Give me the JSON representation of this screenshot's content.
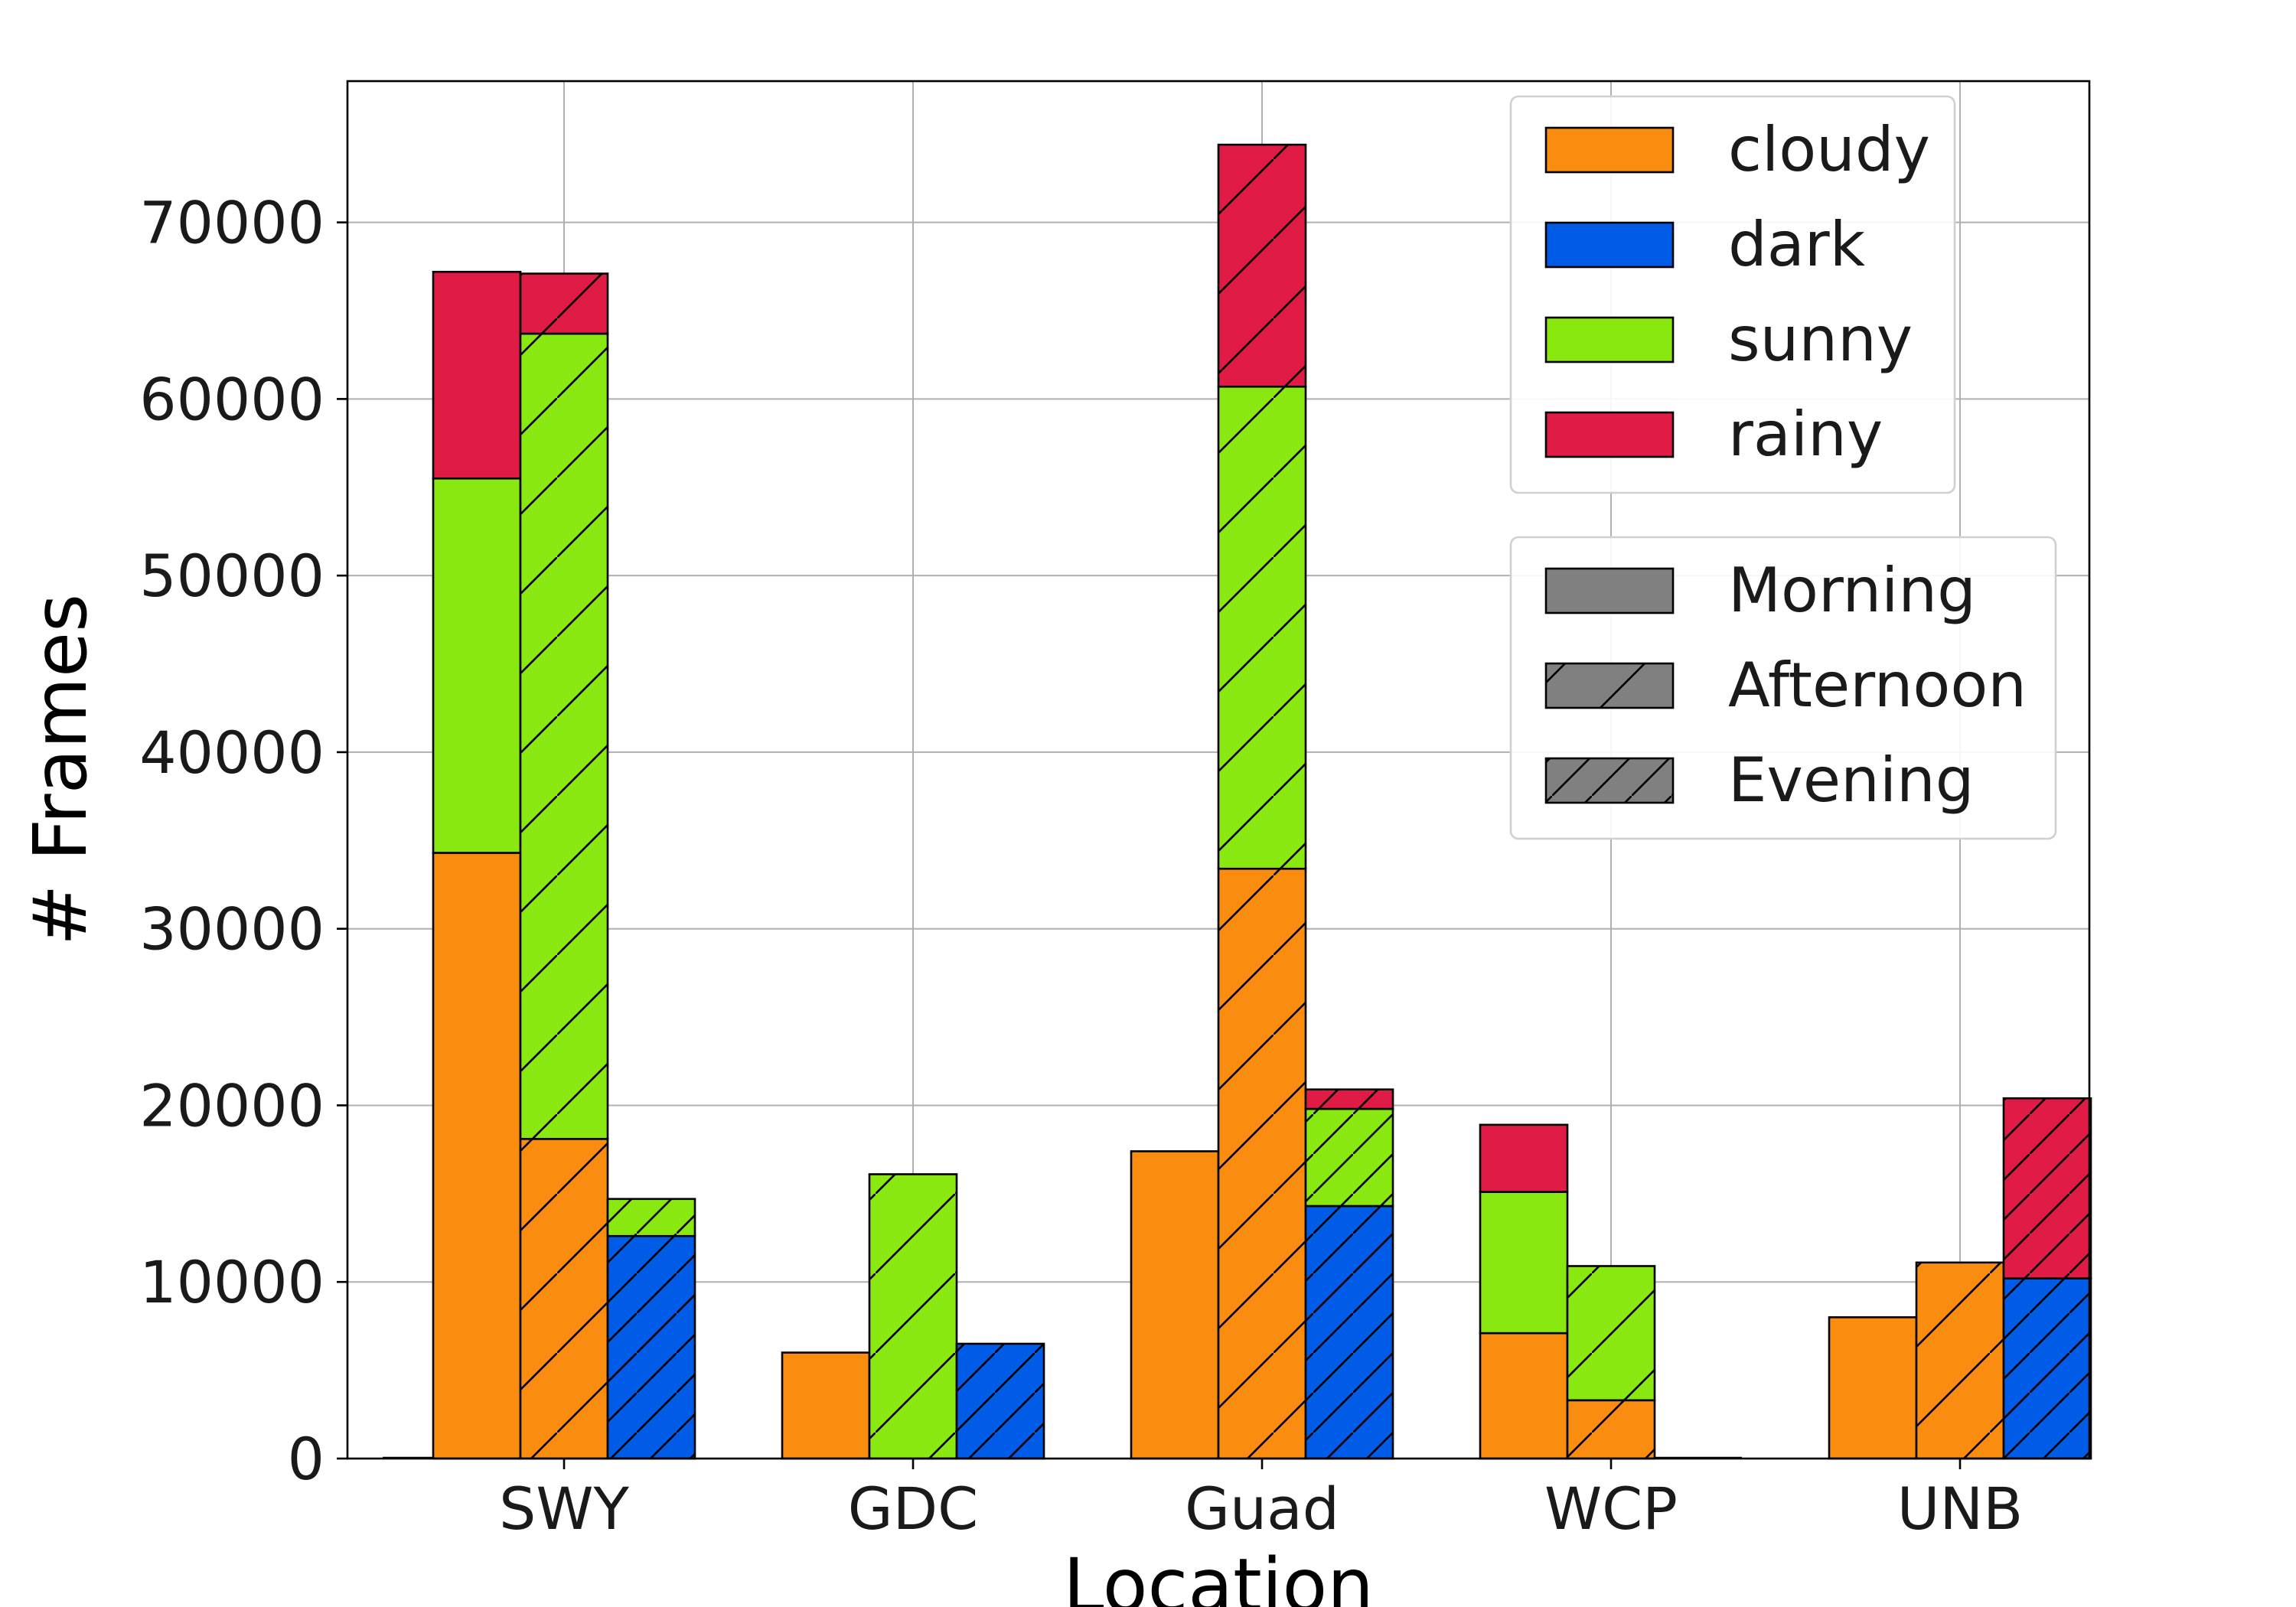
{
  "chart_data": {
    "type": "bar",
    "layout": "grouped-stacked",
    "title": "",
    "xlabel": "Location",
    "ylabel": "# Frames",
    "ylim": [
      0,
      78000
    ],
    "yticks": [
      0,
      10000,
      20000,
      30000,
      40000,
      50000,
      60000,
      70000
    ],
    "ytick_labels": [
      "0",
      "10000",
      "20000",
      "30000",
      "40000",
      "50000",
      "60000",
      "70000"
    ],
    "grid": true,
    "categories": [
      "SWY",
      "GDC",
      "Guad",
      "WCP",
      "UNB"
    ],
    "times": [
      "Morning",
      "Afternoon",
      "Evening"
    ],
    "conditions": [
      "cloudy",
      "dark",
      "sunny",
      "rainy"
    ],
    "colors": {
      "cloudy": "#fa8c10",
      "dark": "#005ce6",
      "sunny": "#88e80f",
      "rainy": "#e01b45",
      "legend_patch": "#808080",
      "edge": "#000000",
      "grid": "#b0b0b0"
    },
    "hatches": {
      "Morning": "none",
      "Afternoon": "sparse-diagonal",
      "Evening": "dense-diagonal"
    },
    "data": {
      "SWY": {
        "Morning": {
          "cloudy": 34300,
          "dark": 0,
          "sunny": 21200,
          "rainy": 11700
        },
        "Afternoon": {
          "cloudy": 18100,
          "dark": 0,
          "sunny": 45600,
          "rainy": 3400
        },
        "Evening": {
          "cloudy": 0,
          "dark": 12600,
          "sunny": 2100,
          "rainy": 0
        }
      },
      "GDC": {
        "Morning": {
          "cloudy": 6000,
          "dark": 0,
          "sunny": 0,
          "rainy": 0
        },
        "Afternoon": {
          "cloudy": 0,
          "dark": 0,
          "sunny": 16100,
          "rainy": 0
        },
        "Evening": {
          "cloudy": 0,
          "dark": 6500,
          "sunny": 0,
          "rainy": 0
        }
      },
      "Guad": {
        "Morning": {
          "cloudy": 17400,
          "dark": 0,
          "sunny": 0,
          "rainy": 0
        },
        "Afternoon": {
          "cloudy": 33400,
          "dark": 0,
          "sunny": 27300,
          "rainy": 13700
        },
        "Evening": {
          "cloudy": 0,
          "dark": 14300,
          "sunny": 5500,
          "rainy": 1100
        }
      },
      "WCP": {
        "Morning": {
          "cloudy": 7100,
          "dark": 0,
          "sunny": 8000,
          "rainy": 3800
        },
        "Afternoon": {
          "cloudy": 3300,
          "dark": 0,
          "sunny": 7600,
          "rainy": 0
        },
        "Evening": {
          "cloudy": 0,
          "dark": 0,
          "sunny": 0,
          "rainy": 0
        }
      },
      "UNB": {
        "Morning": {
          "cloudy": 8000,
          "dark": 0,
          "sunny": 0,
          "rainy": 0
        },
        "Afternoon": {
          "cloudy": 11100,
          "dark": 0,
          "sunny": 0,
          "rainy": 0
        },
        "Evening": {
          "cloudy": 0,
          "dark": 10200,
          "sunny": 0,
          "rainy": 10200
        }
      }
    },
    "legend_conditions": {
      "position": "top-right",
      "entries": [
        "cloudy",
        "dark",
        "sunny",
        "rainy"
      ]
    },
    "legend_times": {
      "position": "upper-right",
      "entries": [
        "Morning",
        "Afternoon",
        "Evening"
      ]
    }
  }
}
